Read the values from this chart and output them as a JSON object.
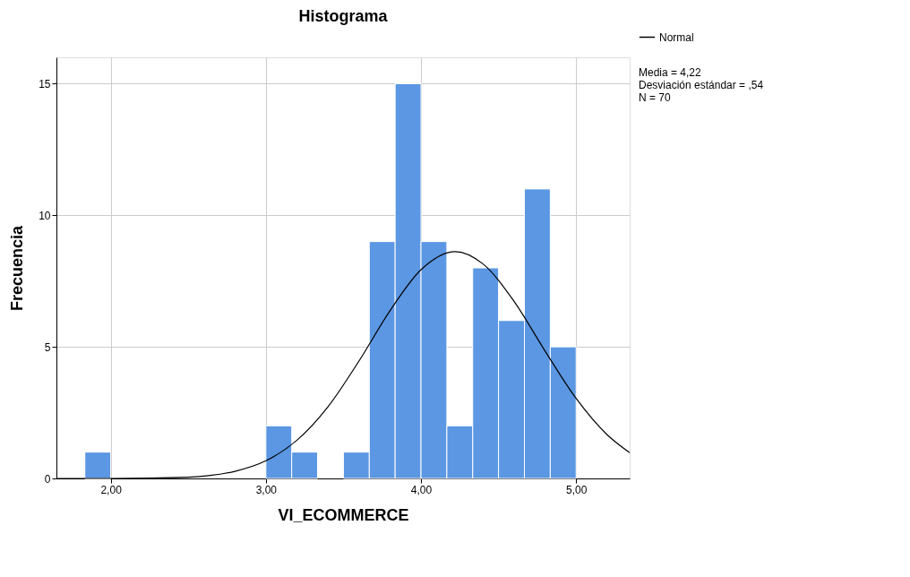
{
  "chart_data": {
    "type": "histogram",
    "title": "Histograma",
    "xlabel": "VI_ECOMMERCE",
    "ylabel": "Frecuencia",
    "bins": [
      1.8333,
      2.0,
      2.1667,
      2.3333,
      2.5,
      2.6667,
      2.8333,
      3.0,
      3.1667,
      3.3333,
      3.5,
      3.6667,
      3.8333,
      4.0,
      4.1667,
      4.3333,
      4.5,
      4.6667,
      4.8333,
      5.0
    ],
    "values": [
      1,
      0,
      0,
      0,
      0,
      0,
      0,
      2,
      1,
      0,
      1,
      9,
      15,
      9,
      2,
      8,
      6,
      11,
      5
    ],
    "color": "#5b97e3",
    "series": [
      {
        "name": "Normal",
        "type": "line",
        "color": "#000000",
        "x": [
          1.65,
          2.0,
          2.5,
          2.8,
          3.0,
          3.2,
          3.4,
          3.6,
          3.8,
          4.0,
          4.22,
          4.4,
          4.6,
          4.8,
          5.0,
          5.2,
          5.345
        ],
        "values": [
          0,
          0,
          0.05,
          0.27,
          0.67,
          1.45,
          2.72,
          4.46,
          6.37,
          7.93,
          8.62,
          8.15,
          6.73,
          4.84,
          3.04,
          1.66,
          0.98
        ]
      }
    ],
    "xlim": [
      1.65,
      5.345
    ],
    "xticks": [
      {
        "value": 2,
        "label": "2,00"
      },
      {
        "value": 3,
        "label": "3,00"
      },
      {
        "value": 4,
        "label": "4,00"
      },
      {
        "value": 5,
        "label": "5,00"
      }
    ],
    "ylim": [
      0,
      16
    ],
    "yticks": [
      0,
      5,
      10,
      15
    ],
    "grid": true,
    "legend": "top right",
    "annotations": [
      "Media = 4,22",
      "Desviación estándar = ,54",
      "N = 70"
    ]
  }
}
